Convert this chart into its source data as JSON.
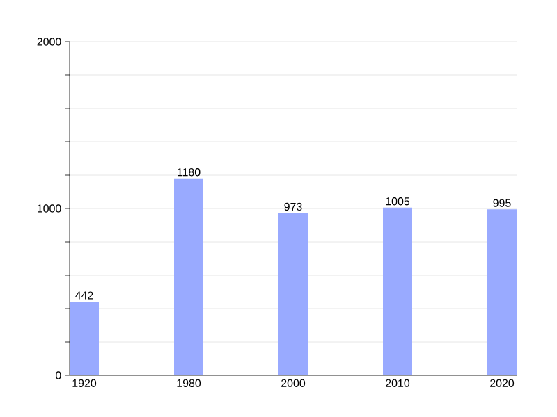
{
  "chart_data": {
    "type": "bar",
    "categories": [
      "1920",
      "1980",
      "2000",
      "2010",
      "2020"
    ],
    "values": [
      442,
      1180,
      973,
      1005,
      995
    ],
    "color": "#99aaff",
    "ylim": [
      0,
      2000
    ],
    "yticks": [
      0,
      {
        "value": 200,
        "label": null
      },
      {
        "value": 400,
        "label": null
      },
      {
        "value": 600,
        "label": null
      },
      {
        "value": 800,
        "label": null
      },
      1000,
      {
        "value": 1200,
        "label": null
      },
      {
        "value": 1400,
        "label": null
      },
      {
        "value": 1600,
        "label": null
      },
      {
        "value": 1800,
        "label": null
      },
      2000
    ],
    "grid": "y",
    "data_labels": true
  }
}
